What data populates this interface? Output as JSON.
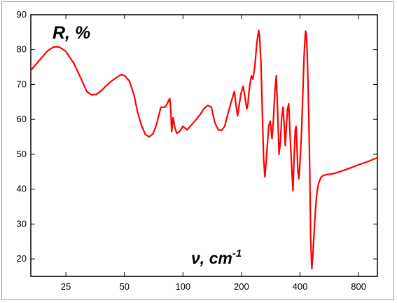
{
  "chart_data": {
    "type": "line",
    "title": "",
    "ylabel": "R, %",
    "xlabel": "ν, cm",
    "xlabel_sup": "-1",
    "x_scale": "log",
    "xlim": [
      16.5,
      1000
    ],
    "ylim": [
      15,
      90
    ],
    "x_ticks": [
      25,
      50,
      100,
      200,
      400,
      800
    ],
    "y_ticks": [
      20,
      30,
      40,
      50,
      60,
      70,
      80,
      90
    ],
    "grid": false,
    "line_color": "#ff0000",
    "series": [
      {
        "x": [
          16.5,
          18,
          20,
          21.5,
          23,
          25,
          27.5,
          30,
          32,
          34,
          36,
          38,
          40,
          43,
          46,
          48,
          50,
          53,
          56,
          58.5,
          61,
          64,
          67,
          70,
          72,
          73.5,
          75,
          77,
          79,
          81,
          83,
          84.5,
          85.5,
          86.5,
          87.5,
          89,
          91,
          93,
          96,
          100,
          105,
          111,
          117,
          123,
          128,
          134,
          140,
          146,
          152,
          158,
          164,
          170,
          176,
          181,
          184,
          187,
          191,
          195,
          199,
          204,
          209,
          213,
          216,
          218,
          221,
          225,
          229,
          234,
          240,
          245,
          248,
          252,
          256,
          260,
          264,
          268,
          272,
          276,
          281,
          287,
          292,
          297,
          302,
          307,
          312,
          317,
          322,
          327,
          332,
          336,
          340,
          345,
          350,
          356,
          362,
          368,
          373,
          378,
          382,
          386,
          390,
          395,
          401,
          407,
          414,
          419,
          423,
          427,
          431,
          435,
          439,
          444,
          449,
          454,
          460,
          467,
          472,
          476,
          479,
          482,
          485,
          488,
          492,
          498,
          505,
          515,
          530,
          550,
          575,
          600,
          640,
          680,
          720,
          760,
          800,
          850,
          900,
          950,
          1000
        ],
        "y": [
          74,
          76.5,
          79.5,
          80.7,
          80.8,
          79.5,
          76,
          71.5,
          68,
          67,
          67.2,
          68.2,
          69.5,
          71,
          72.2,
          72.8,
          72.6,
          71,
          67,
          62,
          58.5,
          55.7,
          55,
          55.8,
          57.5,
          59,
          61,
          63.5,
          63.5,
          63.5,
          64.5,
          65.5,
          66,
          63,
          56.5,
          60.5,
          57.5,
          56,
          56.5,
          58,
          57,
          58.5,
          60,
          61.5,
          63,
          64,
          63.5,
          59,
          57,
          56.8,
          58,
          61.5,
          64.5,
          66.8,
          68,
          64.5,
          61,
          64.5,
          67.5,
          69.5,
          66,
          63,
          64.5,
          67.5,
          70,
          72.5,
          71.5,
          75,
          82,
          85.5,
          83.5,
          76,
          62,
          48.5,
          43.5,
          48,
          53,
          58,
          59.5,
          54.5,
          60,
          68,
          72.5,
          62,
          50,
          53.5,
          60.5,
          63.5,
          58,
          52.5,
          57.5,
          63,
          64.5,
          55,
          47,
          39.5,
          49,
          57,
          58,
          52,
          45,
          43,
          49,
          56,
          68,
          77,
          82,
          85.3,
          84.5,
          80,
          72,
          60,
          45,
          25,
          17.2,
          22,
          27,
          30.5,
          33,
          35,
          37,
          38.5,
          40,
          41.5,
          42.5,
          43.5,
          44,
          44.2,
          44.3,
          44.5,
          45,
          45.5,
          46,
          46.5,
          47,
          47.5,
          48,
          48.5,
          49
        ]
      }
    ]
  }
}
